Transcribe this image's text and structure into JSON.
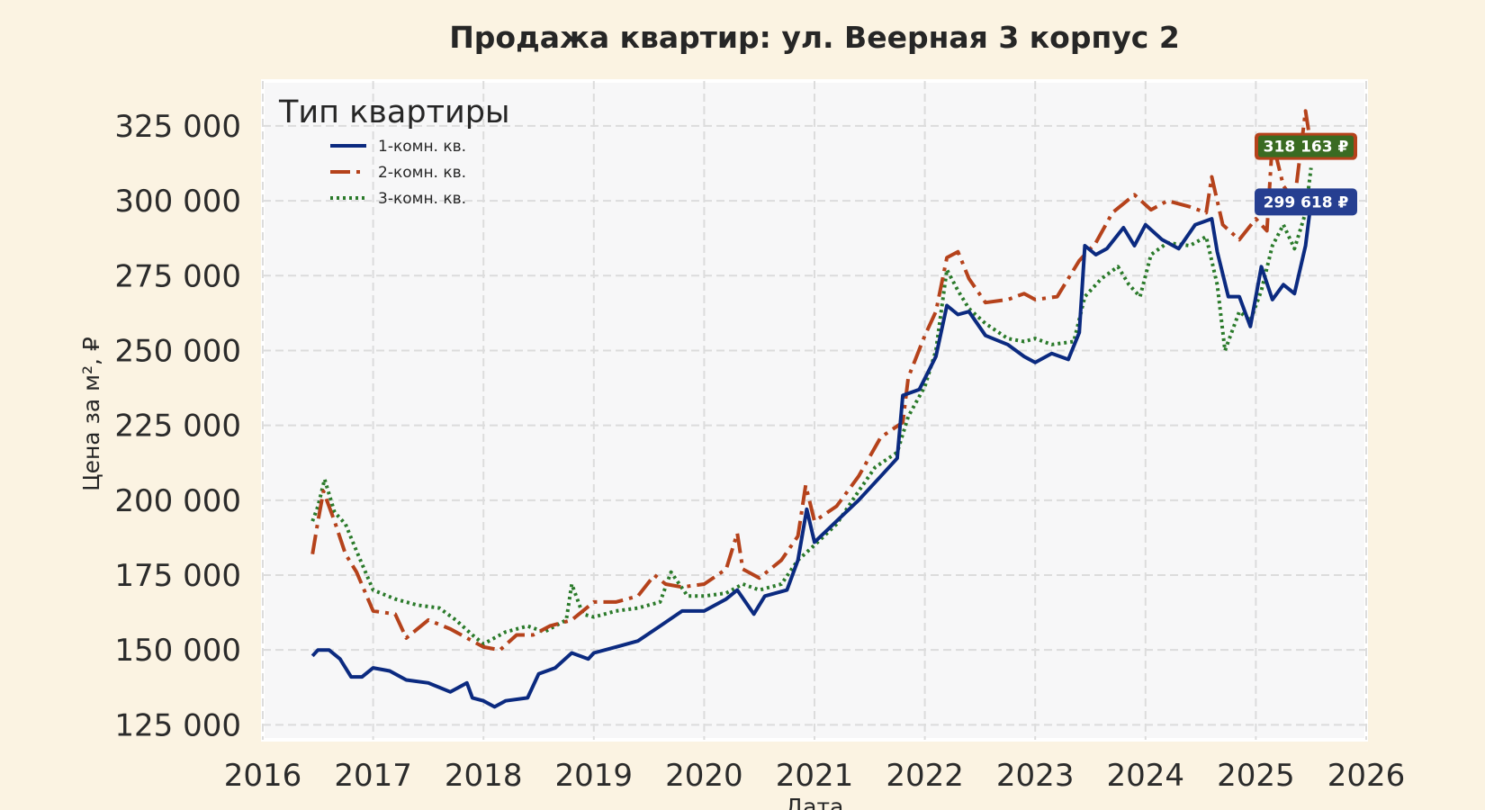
{
  "chart_data": {
    "type": "line",
    "title": "Продажа квартир: ул. Веерная 3 корпус 2",
    "xlabel": "Дата",
    "ylabel": "Цена за м², ₽",
    "xlim": [
      2016,
      2026
    ],
    "ylim": [
      120000,
      340000
    ],
    "x_ticks": [
      "2016",
      "2017",
      "2018",
      "2019",
      "2020",
      "2021",
      "2022",
      "2023",
      "2024",
      "2025",
      "2026"
    ],
    "y_ticks": [
      "125 000",
      "150 000",
      "175 000",
      "200 000",
      "225 000",
      "250 000",
      "275 000",
      "300 000",
      "325 000"
    ],
    "grid": true,
    "legend": {
      "title": "Тип квартиры",
      "position": "top-left"
    },
    "series": [
      {
        "name": "1-комн. кв.",
        "color": "#0b2a80",
        "style": "solid",
        "points": [
          [
            2016.45,
            148000
          ],
          [
            2016.5,
            150000
          ],
          [
            2016.6,
            150000
          ],
          [
            2016.7,
            147000
          ],
          [
            2016.8,
            141000
          ],
          [
            2016.9,
            141000
          ],
          [
            2017.0,
            144000
          ],
          [
            2017.15,
            143000
          ],
          [
            2017.3,
            140000
          ],
          [
            2017.5,
            139000
          ],
          [
            2017.7,
            136000
          ],
          [
            2017.85,
            139000
          ],
          [
            2017.9,
            134000
          ],
          [
            2018.0,
            133000
          ],
          [
            2018.1,
            131000
          ],
          [
            2018.2,
            133000
          ],
          [
            2018.4,
            134000
          ],
          [
            2018.5,
            142000
          ],
          [
            2018.65,
            144000
          ],
          [
            2018.8,
            149000
          ],
          [
            2018.95,
            147000
          ],
          [
            2019.0,
            149000
          ],
          [
            2019.2,
            151000
          ],
          [
            2019.4,
            153000
          ],
          [
            2019.6,
            158000
          ],
          [
            2019.8,
            163000
          ],
          [
            2020.0,
            163000
          ],
          [
            2020.2,
            167000
          ],
          [
            2020.3,
            170000
          ],
          [
            2020.45,
            162000
          ],
          [
            2020.55,
            168000
          ],
          [
            2020.75,
            170000
          ],
          [
            2020.85,
            180000
          ],
          [
            2020.93,
            197000
          ],
          [
            2021.0,
            186000
          ],
          [
            2021.2,
            193000
          ],
          [
            2021.4,
            200000
          ],
          [
            2021.6,
            208000
          ],
          [
            2021.75,
            214000
          ],
          [
            2021.8,
            235000
          ],
          [
            2021.95,
            237000
          ],
          [
            2022.1,
            248000
          ],
          [
            2022.2,
            265000
          ],
          [
            2022.3,
            262000
          ],
          [
            2022.4,
            263000
          ],
          [
            2022.55,
            255000
          ],
          [
            2022.75,
            252000
          ],
          [
            2022.9,
            248000
          ],
          [
            2023.0,
            246000
          ],
          [
            2023.15,
            249000
          ],
          [
            2023.3,
            247000
          ],
          [
            2023.4,
            256000
          ],
          [
            2023.45,
            285000
          ],
          [
            2023.55,
            282000
          ],
          [
            2023.65,
            284000
          ],
          [
            2023.8,
            291000
          ],
          [
            2023.9,
            285000
          ],
          [
            2024.0,
            292000
          ],
          [
            2024.15,
            287000
          ],
          [
            2024.3,
            284000
          ],
          [
            2024.45,
            292000
          ],
          [
            2024.6,
            294000
          ],
          [
            2024.65,
            283000
          ],
          [
            2024.75,
            268000
          ],
          [
            2024.85,
            268000
          ],
          [
            2024.95,
            258000
          ],
          [
            2025.05,
            278000
          ],
          [
            2025.15,
            267000
          ],
          [
            2025.25,
            272000
          ],
          [
            2025.35,
            269000
          ],
          [
            2025.45,
            285000
          ],
          [
            2025.5,
            299618
          ]
        ]
      },
      {
        "name": "2-комн. кв.",
        "color": "#b5421b",
        "style": "dashdot",
        "points": [
          [
            2016.45,
            182000
          ],
          [
            2016.5,
            193000
          ],
          [
            2016.55,
            203000
          ],
          [
            2016.65,
            193000
          ],
          [
            2016.75,
            182000
          ],
          [
            2016.85,
            176000
          ],
          [
            2017.0,
            163000
          ],
          [
            2017.2,
            162000
          ],
          [
            2017.3,
            154000
          ],
          [
            2017.5,
            160000
          ],
          [
            2017.7,
            157000
          ],
          [
            2017.85,
            154000
          ],
          [
            2018.0,
            151000
          ],
          [
            2018.15,
            150000
          ],
          [
            2018.3,
            155000
          ],
          [
            2018.45,
            155000
          ],
          [
            2018.6,
            158000
          ],
          [
            2018.8,
            160000
          ],
          [
            2019.0,
            166000
          ],
          [
            2019.2,
            166000
          ],
          [
            2019.4,
            168000
          ],
          [
            2019.55,
            175000
          ],
          [
            2019.65,
            172000
          ],
          [
            2019.8,
            171000
          ],
          [
            2020.0,
            172000
          ],
          [
            2020.2,
            177000
          ],
          [
            2020.3,
            189000
          ],
          [
            2020.35,
            177000
          ],
          [
            2020.5,
            174000
          ],
          [
            2020.7,
            180000
          ],
          [
            2020.85,
            188000
          ],
          [
            2020.92,
            205000
          ],
          [
            2021.0,
            193000
          ],
          [
            2021.2,
            198000
          ],
          [
            2021.4,
            208000
          ],
          [
            2021.6,
            221000
          ],
          [
            2021.8,
            226000
          ],
          [
            2021.85,
            241000
          ],
          [
            2022.0,
            255000
          ],
          [
            2022.1,
            263000
          ],
          [
            2022.2,
            281000
          ],
          [
            2022.3,
            283000
          ],
          [
            2022.4,
            274000
          ],
          [
            2022.55,
            266000
          ],
          [
            2022.75,
            267000
          ],
          [
            2022.9,
            269000
          ],
          [
            2023.0,
            267000
          ],
          [
            2023.2,
            268000
          ],
          [
            2023.4,
            280000
          ],
          [
            2023.55,
            286000
          ],
          [
            2023.7,
            296000
          ],
          [
            2023.9,
            302000
          ],
          [
            2024.05,
            297000
          ],
          [
            2024.2,
            300000
          ],
          [
            2024.4,
            298000
          ],
          [
            2024.55,
            296000
          ],
          [
            2024.6,
            308000
          ],
          [
            2024.7,
            292000
          ],
          [
            2024.85,
            287000
          ],
          [
            2025.0,
            294000
          ],
          [
            2025.1,
            290000
          ],
          [
            2025.15,
            320000
          ],
          [
            2025.25,
            305000
          ],
          [
            2025.35,
            300000
          ],
          [
            2025.45,
            330000
          ],
          [
            2025.5,
            318163
          ]
        ]
      },
      {
        "name": "3-комн. кв.",
        "color": "#2a7a2a",
        "style": "dotted",
        "points": [
          [
            2016.45,
            193000
          ],
          [
            2016.5,
            198000
          ],
          [
            2016.56,
            207000
          ],
          [
            2016.65,
            196000
          ],
          [
            2016.75,
            192000
          ],
          [
            2016.85,
            183000
          ],
          [
            2017.0,
            170000
          ],
          [
            2017.2,
            167000
          ],
          [
            2017.4,
            165000
          ],
          [
            2017.6,
            164000
          ],
          [
            2017.75,
            160000
          ],
          [
            2017.9,
            155000
          ],
          [
            2018.0,
            152000
          ],
          [
            2018.2,
            156000
          ],
          [
            2018.4,
            158000
          ],
          [
            2018.55,
            156000
          ],
          [
            2018.75,
            160000
          ],
          [
            2018.8,
            172000
          ],
          [
            2018.9,
            162000
          ],
          [
            2019.0,
            161000
          ],
          [
            2019.2,
            163000
          ],
          [
            2019.4,
            164000
          ],
          [
            2019.6,
            166000
          ],
          [
            2019.7,
            176000
          ],
          [
            2019.85,
            168000
          ],
          [
            2020.0,
            168000
          ],
          [
            2020.2,
            169000
          ],
          [
            2020.35,
            172000
          ],
          [
            2020.5,
            170000
          ],
          [
            2020.7,
            172000
          ],
          [
            2020.85,
            180000
          ],
          [
            2021.0,
            185000
          ],
          [
            2021.2,
            192000
          ],
          [
            2021.4,
            203000
          ],
          [
            2021.55,
            211000
          ],
          [
            2021.75,
            216000
          ],
          [
            2021.85,
            228000
          ],
          [
            2022.0,
            238000
          ],
          [
            2022.1,
            250000
          ],
          [
            2022.2,
            277000
          ],
          [
            2022.3,
            270000
          ],
          [
            2022.4,
            264000
          ],
          [
            2022.55,
            259000
          ],
          [
            2022.75,
            254000
          ],
          [
            2022.9,
            253000
          ],
          [
            2023.0,
            254000
          ],
          [
            2023.15,
            252000
          ],
          [
            2023.35,
            253000
          ],
          [
            2023.45,
            268000
          ],
          [
            2023.6,
            274000
          ],
          [
            2023.75,
            278000
          ],
          [
            2023.85,
            272000
          ],
          [
            2023.95,
            268000
          ],
          [
            2024.05,
            282000
          ],
          [
            2024.2,
            286000
          ],
          [
            2024.4,
            285000
          ],
          [
            2024.55,
            288000
          ],
          [
            2024.65,
            272000
          ],
          [
            2024.72,
            250000
          ],
          [
            2024.85,
            263000
          ],
          [
            2024.95,
            260000
          ],
          [
            2025.05,
            270000
          ],
          [
            2025.15,
            285000
          ],
          [
            2025.25,
            292000
          ],
          [
            2025.35,
            284000
          ],
          [
            2025.45,
            296000
          ],
          [
            2025.5,
            311000
          ]
        ]
      }
    ],
    "end_labels": [
      {
        "series": "2-комн. кв.",
        "text": "318 163 ₽",
        "value": 318163,
        "fill": "#3a6b22",
        "border": "#b5421b"
      },
      {
        "series": "1-комн. кв.",
        "text": "299 618 ₽",
        "value": 299618,
        "fill": "#263f91",
        "border": "#263f91"
      }
    ]
  }
}
